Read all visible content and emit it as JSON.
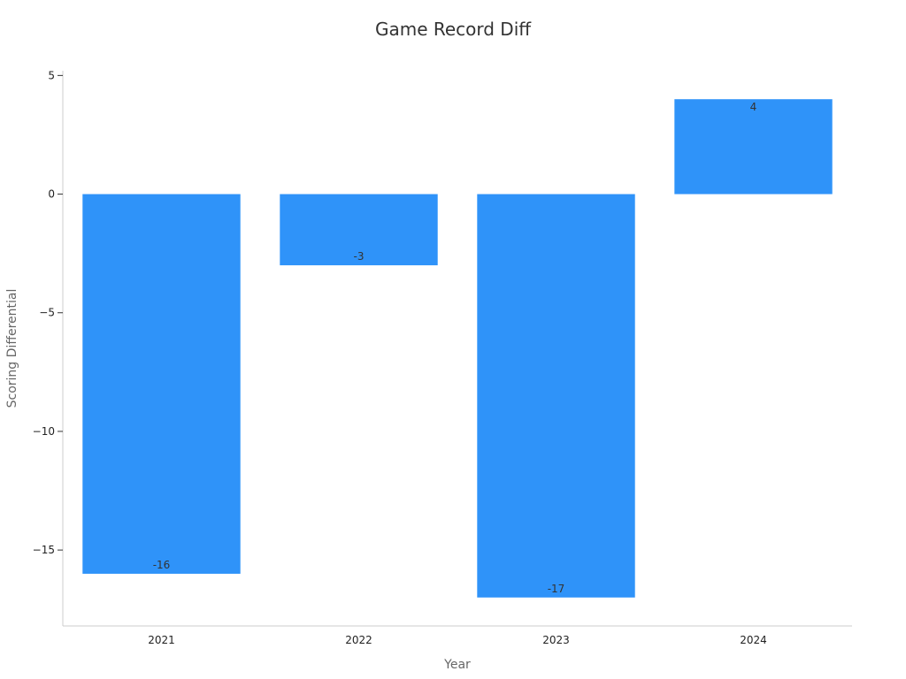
{
  "chart_data": {
    "type": "bar",
    "title": "Game Record Diff",
    "xlabel": "Year",
    "ylabel": "Scoring Differential",
    "categories": [
      "2021",
      "2022",
      "2023",
      "2024"
    ],
    "values": [
      -16,
      -3,
      -17,
      4
    ],
    "data_labels": [
      "-16",
      "-3",
      "-17",
      "4"
    ],
    "ylim": [
      -18.2,
      5.2
    ],
    "yticks": [
      5,
      0,
      -5,
      -10,
      -15
    ],
    "ytick_labels": [
      "5",
      "0",
      "−5",
      "−10",
      "−15"
    ],
    "grid": false,
    "legend": "none",
    "colors": {
      "bar": "#2f93f9",
      "axis": "#cccccc"
    }
  }
}
